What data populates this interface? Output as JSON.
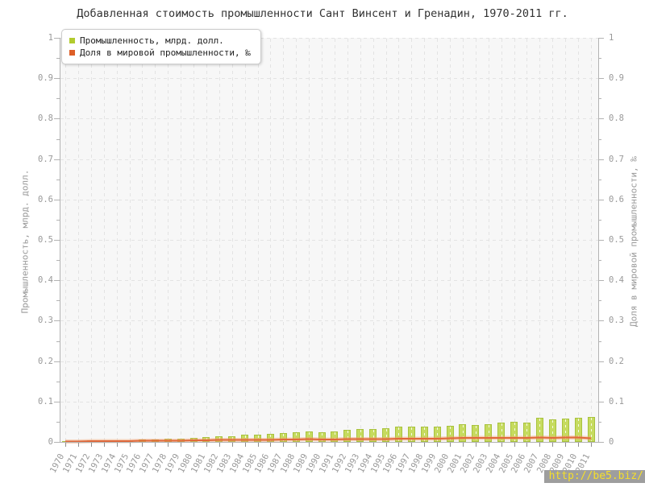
{
  "title": "Добавленная стоимость промышленности Сант Винсент и Гренадин, 1970-2011 гг.",
  "legend": {
    "items": [
      {
        "label": "Промышленность, млрд. долл.",
        "color": "#b2cb2e"
      },
      {
        "label": "Доля в мировой промышленности, ‰",
        "color": "#dd5f28"
      }
    ]
  },
  "watermark": "http://be5.biz/",
  "chart_data": {
    "type": "bar",
    "title": "Добавленная стоимость промышленности Сант Винсент и Гренадин, 1970-2011 гг.",
    "categories": [
      "1970",
      "1971",
      "1972",
      "1973",
      "1974",
      "1975",
      "1976",
      "1977",
      "1978",
      "1979",
      "1980",
      "1981",
      "1982",
      "1983",
      "1984",
      "1985",
      "1986",
      "1987",
      "1988",
      "1989",
      "1990",
      "1991",
      "1992",
      "1993",
      "1994",
      "1995",
      "1996",
      "1997",
      "1998",
      "1999",
      "2000",
      "2001",
      "2002",
      "2003",
      "2004",
      "2005",
      "2006",
      "2007",
      "2008",
      "2009",
      "2010",
      "2011"
    ],
    "series": [
      {
        "name": "Промышленность, млрд. долл.",
        "type": "bar",
        "axis": "left",
        "color": "#c6db5f",
        "border_color": "#a8c23d",
        "values": [
          0.002,
          0.002,
          0.003,
          0.003,
          0.004,
          0.004,
          0.005,
          0.006,
          0.007,
          0.008,
          0.01,
          0.012,
          0.013,
          0.014,
          0.017,
          0.017,
          0.019,
          0.022,
          0.023,
          0.026,
          0.023,
          0.026,
          0.03,
          0.031,
          0.032,
          0.034,
          0.037,
          0.038,
          0.037,
          0.037,
          0.039,
          0.043,
          0.041,
          0.043,
          0.048,
          0.05,
          0.048,
          0.059,
          0.055,
          0.058,
          0.06,
          0.061
        ]
      },
      {
        "name": "Доля в мировой промышленности, ‰",
        "type": "line",
        "axis": "right",
        "color": "#e0683a",
        "halo_color": "rgba(240,160,110,0.45)",
        "values": [
          0.001,
          0.001,
          0.002,
          0.002,
          0.002,
          0.002,
          0.003,
          0.003,
          0.003,
          0.003,
          0.004,
          0.004,
          0.005,
          0.005,
          0.005,
          0.005,
          0.005,
          0.006,
          0.006,
          0.007,
          0.006,
          0.006,
          0.007,
          0.007,
          0.007,
          0.007,
          0.008,
          0.008,
          0.008,
          0.008,
          0.009,
          0.01,
          0.01,
          0.01,
          0.01,
          0.01,
          0.01,
          0.011,
          0.01,
          0.011,
          0.011,
          0.009
        ]
      }
    ],
    "left_axis": {
      "label": "Промышленность, млрд. долл.",
      "min": 0,
      "max": 1,
      "tick_step": 0.1,
      "ticks": [
        "0",
        "0.1",
        "0.2",
        "0.3",
        "0.4",
        "0.5",
        "0.6",
        "0.7",
        "0.8",
        "0.9",
        "1"
      ]
    },
    "right_axis": {
      "label": "Доля в мировой промышленности, ‰",
      "min": 0,
      "max": 1,
      "tick_step": 0.1,
      "ticks": [
        "0",
        "0.1",
        "0.2",
        "0.3",
        "0.4",
        "0.5",
        "0.6",
        "0.7",
        "0.8",
        "0.9",
        "1"
      ]
    },
    "grid": "dashed",
    "legend_position": "top-left"
  }
}
